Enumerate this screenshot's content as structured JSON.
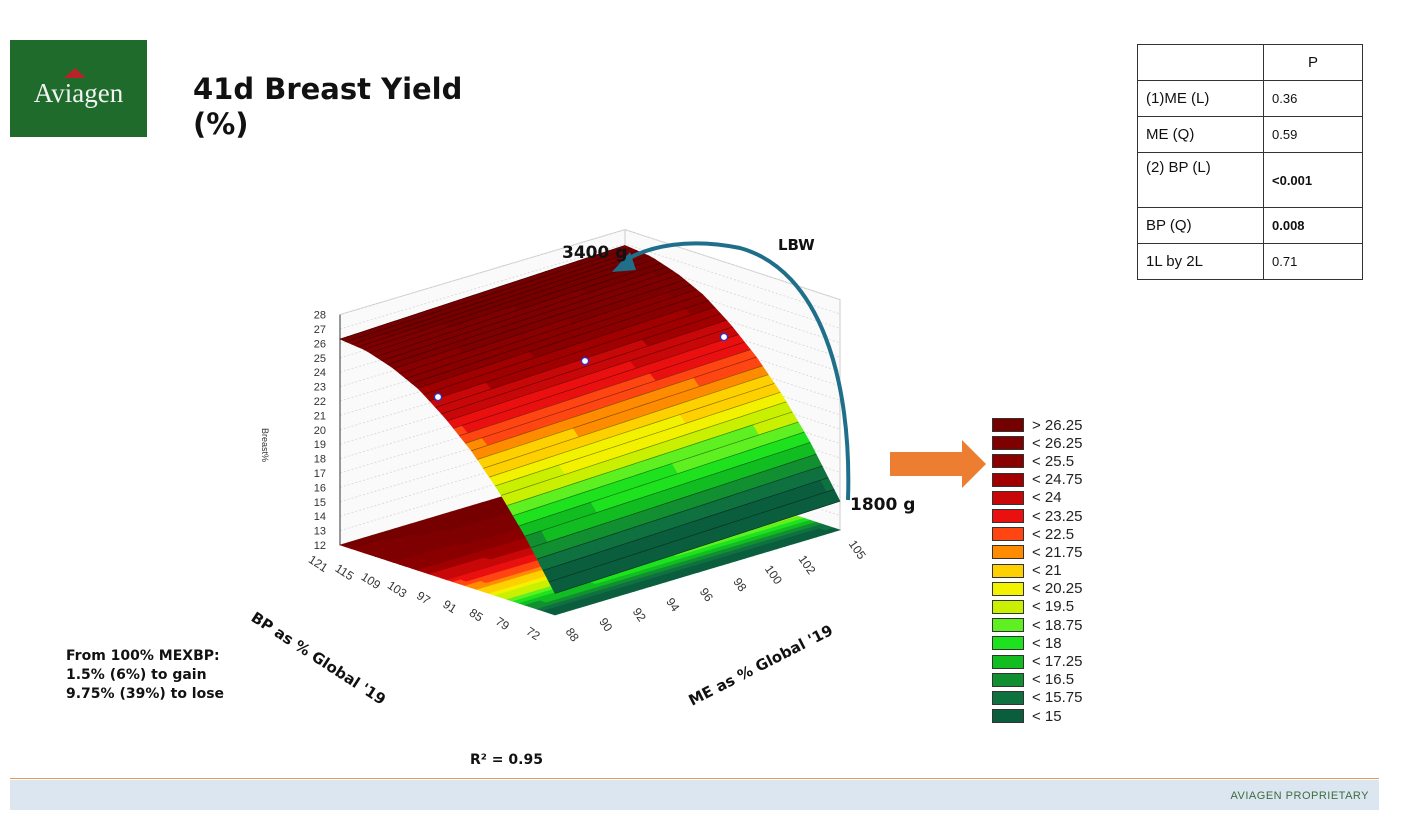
{
  "logo": {
    "text": "Aviagen"
  },
  "title": {
    "line1": "41d Breast Yield",
    "line2": "(%)"
  },
  "p_table": {
    "header": [
      "",
      "P"
    ],
    "rows": [
      {
        "term": "(1)ME (L)",
        "p": "0.36",
        "bold": false
      },
      {
        "term": "ME (Q)",
        "p": "0.59",
        "bold": false
      },
      {
        "term": "(2) BP (L)",
        "p": "<0.001",
        "bold": true
      },
      {
        "term": "BP (Q)",
        "p": "0.008",
        "bold": true
      },
      {
        "term": "1L by 2L",
        "p": "0.71",
        "bold": false
      }
    ]
  },
  "annotations": {
    "top_weight": "3400 g",
    "bottom_weight": "1800 g",
    "lbw": "LBW",
    "note_lines": [
      "From 100% MEXBP:",
      "1.5% (6%) to gain",
      "9.75% (39%) to lose"
    ],
    "r2": "R² = 0.95",
    "lbw_arrow_color": "#1f6f8b",
    "pointer_arrow_color": "#ed7d31"
  },
  "footer": {
    "text": "AVIAGEN PROPRIETARY"
  },
  "chart_data": {
    "type": "surface",
    "zlabel": "Breast%",
    "xlabel": "BP as % Global '19",
    "ylabel": "ME as % Global '19",
    "z_ticks": [
      12,
      13,
      14,
      15,
      16,
      17,
      18,
      19,
      20,
      21,
      22,
      23,
      24,
      25,
      26,
      27,
      28
    ],
    "zlim": [
      12,
      28
    ],
    "bp_ticks": [
      121,
      115,
      109,
      103,
      97,
      91,
      85,
      79,
      72
    ],
    "me_ticks": [
      88,
      90,
      92,
      94,
      96,
      98,
      100,
      102,
      105
    ],
    "surface": {
      "bp_values": [
        121,
        115,
        109,
        103,
        97,
        91,
        85,
        79,
        72
      ],
      "me_values": [
        88,
        105
      ],
      "z": [
        [
          26.3,
          26.9
        ],
        [
          26.1,
          26.7
        ],
        [
          25.5,
          26.1
        ],
        [
          24.6,
          25.2
        ],
        [
          23.2,
          23.8
        ],
        [
          21.5,
          22.1
        ],
        [
          19.4,
          20.0
        ],
        [
          16.9,
          17.5
        ],
        [
          13.5,
          14.0
        ]
      ]
    },
    "legend": {
      "placement": "right",
      "levels": [
        15,
        15.75,
        16.5,
        17.25,
        18,
        18.75,
        19.5,
        20.25,
        21,
        21.75,
        22.5,
        23.25,
        24,
        24.75,
        25.5,
        26.25
      ],
      "items": [
        {
          "label": "> 26.25",
          "color": "#760000"
        },
        {
          "label": "< 26.25",
          "color": "#7f0000"
        },
        {
          "label": "< 25.5",
          "color": "#8a0000"
        },
        {
          "label": "< 24.75",
          "color": "#a00000"
        },
        {
          "label": "< 24",
          "color": "#c80808"
        },
        {
          "label": "< 23.25",
          "color": "#ea1010"
        },
        {
          "label": "< 22.5",
          "color": "#ff4512"
        },
        {
          "label": "< 21.75",
          "color": "#ff8c00"
        },
        {
          "label": "< 21",
          "color": "#ffd000"
        },
        {
          "label": "< 20.25",
          "color": "#f2f200"
        },
        {
          "label": "< 19.5",
          "color": "#c8f000"
        },
        {
          "label": "< 18.75",
          "color": "#5ef020"
        },
        {
          "label": "< 18",
          "color": "#1ee21e"
        },
        {
          "label": "< 17.25",
          "color": "#12bd22"
        },
        {
          "label": "< 16.5",
          "color": "#128f30"
        },
        {
          "label": "< 15.75",
          "color": "#0f7040"
        },
        {
          "label": "< 15",
          "color": "#0a5e3e"
        }
      ]
    }
  }
}
